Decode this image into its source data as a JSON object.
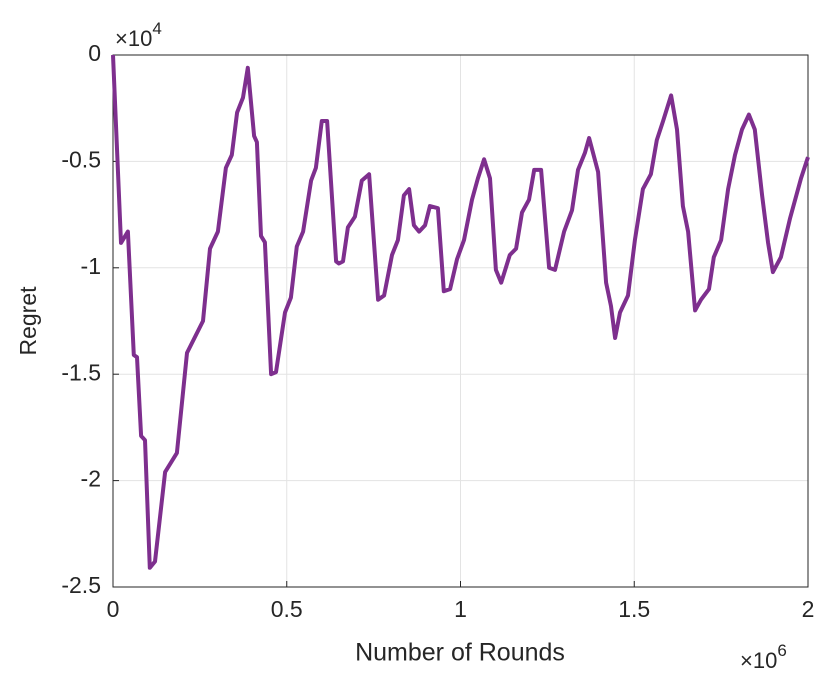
{
  "chart_data": {
    "type": "line",
    "xlabel": "Number of Rounds",
    "ylabel": "Regret",
    "x_multiplier": {
      "base": "×10",
      "exponent": "6"
    },
    "y_multiplier": {
      "base": "×10",
      "exponent": "4"
    },
    "xlim": [
      0,
      2
    ],
    "ylim": [
      -2.5,
      0
    ],
    "xticks": [
      0,
      0.5,
      1,
      1.5,
      2
    ],
    "yticks": [
      -2.5,
      -2,
      -1.5,
      -1,
      -0.5,
      0
    ],
    "grid": true,
    "series": [
      {
        "color": "#7e2f8e",
        "x": [
          0,
          0.023,
          0.043,
          0.06,
          0.069,
          0.081,
          0.092,
          0.106,
          0.121,
          0.15,
          0.184,
          0.213,
          0.259,
          0.279,
          0.302,
          0.325,
          0.342,
          0.357,
          0.374,
          0.388,
          0.406,
          0.414,
          0.426,
          0.437,
          0.455,
          0.469,
          0.495,
          0.512,
          0.529,
          0.547,
          0.57,
          0.584,
          0.601,
          0.616,
          0.642,
          0.65,
          0.662,
          0.676,
          0.696,
          0.716,
          0.737,
          0.763,
          0.78,
          0.803,
          0.82,
          0.837,
          0.852,
          0.866,
          0.881,
          0.898,
          0.912,
          0.935,
          0.952,
          0.97,
          0.99,
          1.01,
          1.033,
          1.05,
          1.068,
          1.085,
          1.102,
          1.117,
          1.142,
          1.16,
          1.177,
          1.197,
          1.212,
          1.232,
          1.255,
          1.272,
          1.298,
          1.321,
          1.338,
          1.358,
          1.37,
          1.396,
          1.419,
          1.433,
          1.445,
          1.459,
          1.482,
          1.502,
          1.525,
          1.548,
          1.565,
          1.583,
          1.606,
          1.623,
          1.64,
          1.655,
          1.675,
          1.692,
          1.715,
          1.729,
          1.75,
          1.77,
          1.79,
          1.81,
          1.83,
          1.847,
          1.868,
          1.885,
          1.899,
          1.922,
          1.948,
          1.98,
          2.0
        ],
        "values": [
          0,
          -0.883,
          -0.83,
          -1.41,
          -1.42,
          -1.79,
          -1.81,
          -2.41,
          -2.38,
          -1.96,
          -1.87,
          -1.4,
          -1.25,
          -0.91,
          -0.83,
          -0.53,
          -0.47,
          -0.27,
          -0.2,
          -0.06,
          -0.38,
          -0.41,
          -0.85,
          -0.88,
          -1.5,
          -1.49,
          -1.21,
          -1.14,
          -0.9,
          -0.83,
          -0.59,
          -0.53,
          -0.31,
          -0.31,
          -0.97,
          -0.98,
          -0.97,
          -0.81,
          -0.76,
          -0.59,
          -0.56,
          -1.15,
          -1.13,
          -0.94,
          -0.87,
          -0.66,
          -0.63,
          -0.8,
          -0.83,
          -0.8,
          -0.71,
          -0.72,
          -1.11,
          -1.1,
          -0.96,
          -0.87,
          -0.68,
          -0.58,
          -0.49,
          -0.58,
          -1.01,
          -1.07,
          -0.94,
          -0.91,
          -0.74,
          -0.68,
          -0.54,
          -0.54,
          -1.0,
          -1.01,
          -0.83,
          -0.73,
          -0.54,
          -0.46,
          -0.39,
          -0.55,
          -1.07,
          -1.18,
          -1.33,
          -1.21,
          -1.13,
          -0.87,
          -0.63,
          -0.56,
          -0.4,
          -0.31,
          -0.19,
          -0.35,
          -0.71,
          -0.83,
          -1.2,
          -1.15,
          -1.1,
          -0.95,
          -0.87,
          -0.63,
          -0.47,
          -0.35,
          -0.28,
          -0.35,
          -0.66,
          -0.88,
          -1.02,
          -0.95,
          -0.77,
          -0.58,
          -0.48
        ]
      }
    ]
  }
}
